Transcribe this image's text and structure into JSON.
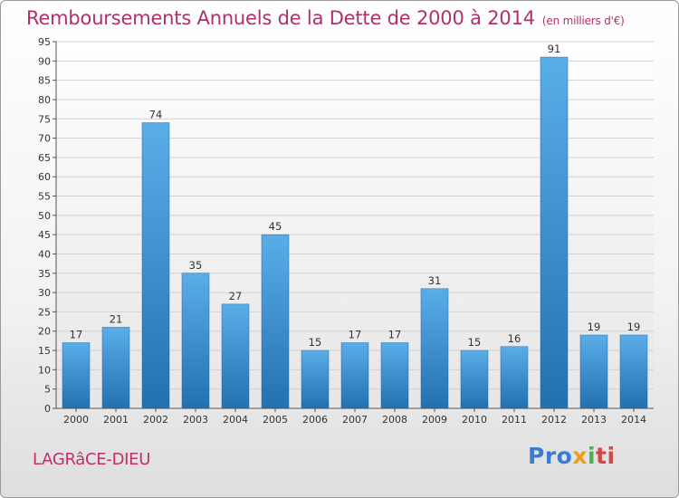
{
  "header": {
    "title": "Remboursements Annuels de la Dette de 2000 à 2014",
    "unit": "(en milliers d'€)"
  },
  "commune": "LAGRâCE-DIEU",
  "logo": {
    "p1": "Pro",
    "p2": "x",
    "p3": "i",
    "p4": "ti"
  },
  "colors": {
    "bar_top": "#5aaee8",
    "bar_bottom": "#2270b0",
    "title": "#b0306a"
  },
  "chart_data": {
    "type": "bar",
    "title": "Remboursements Annuels de la Dette de 2000 à 2014",
    "categories": [
      "2000",
      "2001",
      "2002",
      "2003",
      "2004",
      "2005",
      "2006",
      "2007",
      "2008",
      "2009",
      "2010",
      "2011",
      "2012",
      "2013",
      "2014"
    ],
    "values": [
      17,
      21,
      74,
      35,
      27,
      45,
      15,
      17,
      17,
      31,
      15,
      16,
      91,
      19,
      19
    ],
    "ylim": [
      0,
      95
    ],
    "yticks": [
      0,
      5,
      10,
      15,
      20,
      25,
      30,
      35,
      40,
      45,
      50,
      55,
      60,
      65,
      70,
      75,
      80,
      85,
      90,
      95
    ],
    "grid": true,
    "legend": "none"
  }
}
